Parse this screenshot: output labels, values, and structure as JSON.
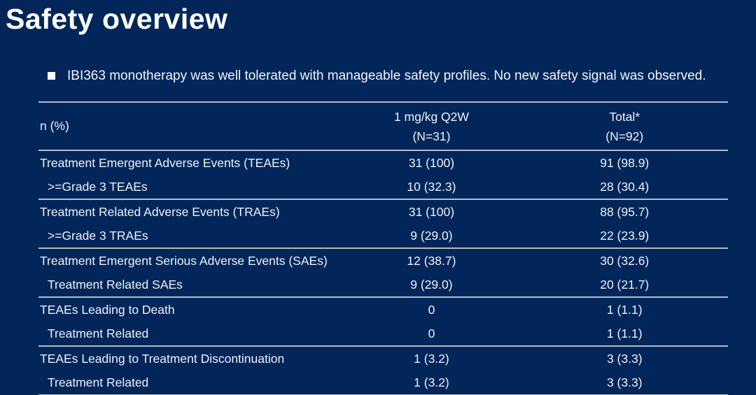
{
  "slide": {
    "title": "Safety overview",
    "bullet": "IBI363 monotherapy was well tolerated with manageable safety profiles. No new safety signal was observed."
  },
  "colors": {
    "background": "#02265a",
    "text": "#f0f3f7",
    "rule_line": "#b3bcc6"
  },
  "table": {
    "header": {
      "col1": "n (%)",
      "col2_line1": "1 mg/kg Q2W",
      "col2_line2": "(N=31)",
      "col3_line1": "Total*",
      "col3_line2": "(N=92)"
    },
    "rows": [
      {
        "label": "Treatment Emergent Adverse Events (TEAEs)",
        "q2w": "31 (100)",
        "total": "91 (98.9)"
      },
      {
        "label": ">=Grade 3 TEAEs",
        "q2w": "10 (32.3)",
        "total": "28 (30.4)"
      },
      {
        "label": "Treatment Related Adverse Events (TRAEs)",
        "q2w": "31 (100)",
        "total": "88 (95.7)"
      },
      {
        "label": ">=Grade 3 TRAEs",
        "q2w": "9 (29.0)",
        "total": "22 (23.9)"
      },
      {
        "label": "Treatment Emergent Serious Adverse Events (SAEs)",
        "q2w": "12 (38.7)",
        "total": "30 (32.6)"
      },
      {
        "label": "Treatment Related SAEs",
        "q2w": "9 (29.0)",
        "total": "20 (21.7)"
      },
      {
        "label": "TEAEs Leading to Death",
        "q2w": "0",
        "total": "1 (1.1)"
      },
      {
        "label": "Treatment Related",
        "q2w": "0",
        "total": "1 (1.1)"
      },
      {
        "label": "TEAEs Leading to Treatment Discontinuation",
        "q2w": "1 (3.2)",
        "total": "3 (3.3)"
      },
      {
        "label": "Treatment Related",
        "q2w": "1 (3.2)",
        "total": "3 (3.3)"
      }
    ]
  }
}
